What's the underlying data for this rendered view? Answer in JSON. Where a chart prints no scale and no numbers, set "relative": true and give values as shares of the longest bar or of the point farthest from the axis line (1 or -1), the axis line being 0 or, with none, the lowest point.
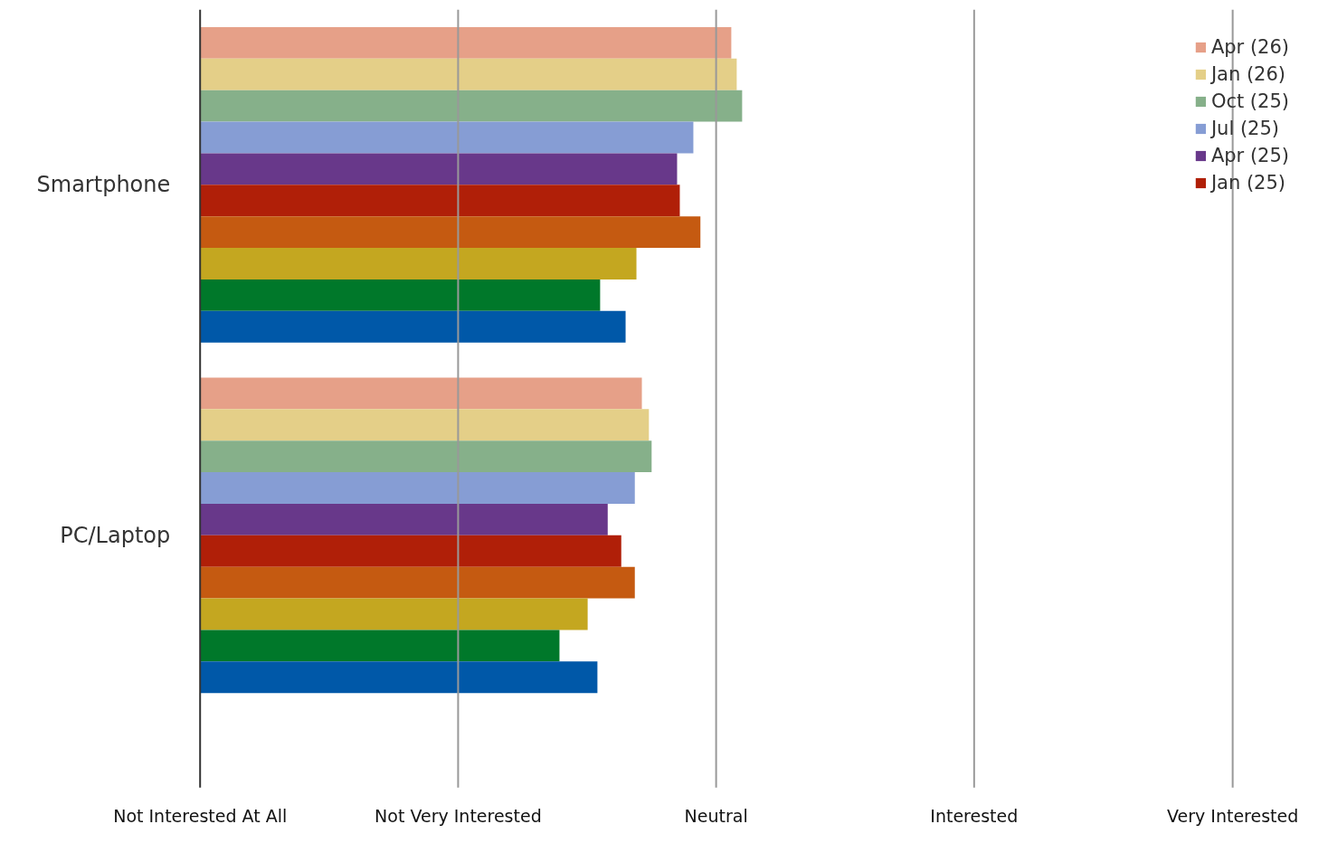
{
  "chart_data": {
    "type": "bar",
    "orientation": "horizontal",
    "relative": true,
    "categories": [
      "Smartphone",
      "PC/Laptop"
    ],
    "series": [
      {
        "name": "Apr (26)",
        "color": "#e6a088",
        "values": [
          0.98,
          0.815
        ]
      },
      {
        "name": "Jan (26)",
        "color": "#e4cf88",
        "values": [
          0.99,
          0.828
        ]
      },
      {
        "name": "Oct (25)",
        "color": "#86b08a",
        "values": [
          1,
          0.833
        ]
      },
      {
        "name": "Jul (25)",
        "color": "#869dd4",
        "values": [
          0.91,
          0.802
        ]
      },
      {
        "name": "Apr (25)",
        "color": "#68388a",
        "values": [
          0.88,
          0.752
        ]
      },
      {
        "name": "Jan (25)",
        "color": "#b01f08",
        "values": [
          0.885,
          0.777
        ]
      },
      {
        "color": "#c55a11",
        "values": [
          0.923,
          0.802
        ]
      },
      {
        "color": "#c4a720",
        "values": [
          0.805,
          0.715
        ]
      },
      {
        "color": "#00782a",
        "values": [
          0.738,
          0.663
        ]
      },
      {
        "color": "#0058a8",
        "values": [
          0.785,
          0.733
        ]
      }
    ],
    "ref_lines": [
      {
        "axis": "x",
        "value": 0.476,
        "label": "Not Very Interested",
        "color": "#999999"
      },
      {
        "axis": "x",
        "value": 0.952,
        "label": "Neutral",
        "color": "#999999"
      },
      {
        "axis": "x",
        "value": 1.428,
        "label": "Interested",
        "color": "#999999"
      },
      {
        "axis": "x",
        "value": 1.905,
        "label": "Very Interested",
        "color": "#999999"
      }
    ],
    "annotations": [
      "Not Interested At All"
    ],
    "legend": "top right"
  }
}
